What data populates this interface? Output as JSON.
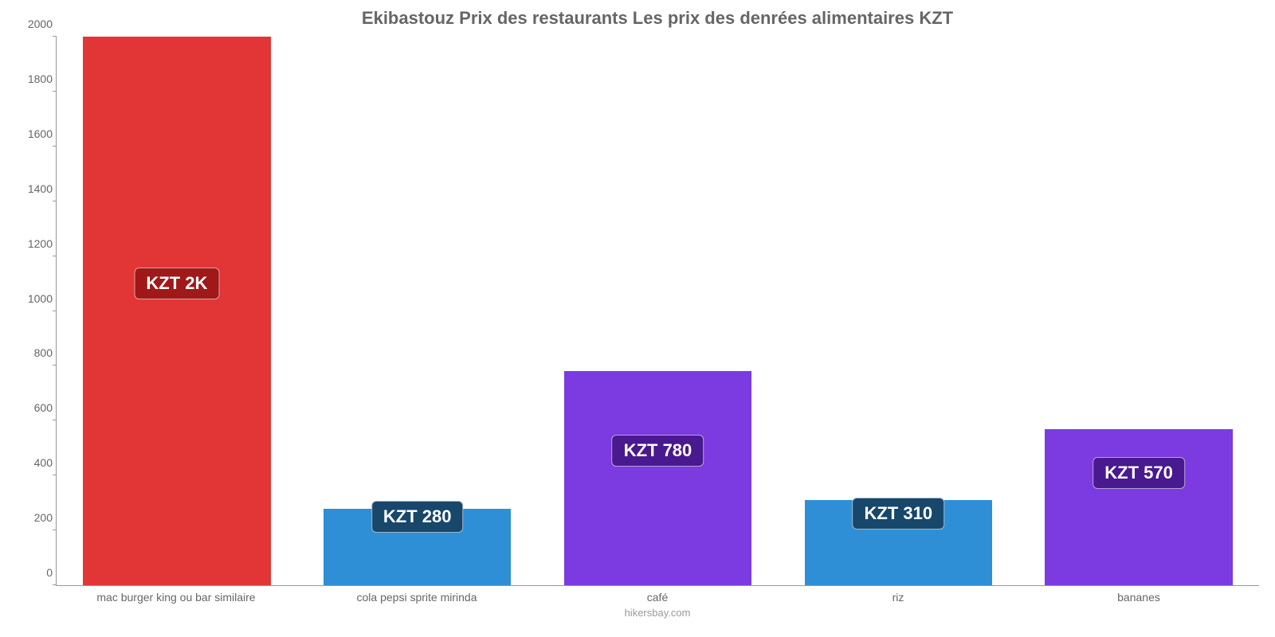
{
  "chart": {
    "type": "bar",
    "title": "Ekibastouz Prix des restaurants Les prix des denrées alimentaires KZT",
    "title_color": "#666666",
    "title_fontsize": 22,
    "background_color": "#ffffff",
    "axis_color": "#999999",
    "tick_label_color": "#666666",
    "tick_label_fontsize": 14,
    "credit": "hikersbay.com",
    "credit_color": "#999999",
    "ylim": [
      0,
      2000
    ],
    "ytick_step": 200,
    "yticks": [
      0,
      200,
      400,
      600,
      800,
      1000,
      1200,
      1400,
      1600,
      1800,
      2000
    ],
    "bar_width_pct": 78,
    "badge_text_color": "#ffffff",
    "badge_fontsize": 22,
    "badge_border_color": "rgba(255,255,255,0.6)",
    "categories": [
      {
        "label": "mac burger king ou bar similaire",
        "value": 2000,
        "value_label": "KZT 2K",
        "bar_color": "#e23636",
        "badge_color": "#a01818",
        "badge_y_value": 1100
      },
      {
        "label": "cola pepsi sprite mirinda",
        "value": 280,
        "value_label": "KZT 280",
        "bar_color": "#2f8fd6",
        "badge_color": "#17476b",
        "badge_y_value": 250
      },
      {
        "label": "café",
        "value": 780,
        "value_label": "KZT 780",
        "bar_color": "#7b3be0",
        "badge_color": "#48198f",
        "badge_y_value": 490
      },
      {
        "label": "riz",
        "value": 310,
        "value_label": "KZT 310",
        "bar_color": "#2f8fd6",
        "badge_color": "#17476b",
        "badge_y_value": 260
      },
      {
        "label": "bananes",
        "value": 570,
        "value_label": "KZT 570",
        "bar_color": "#7b3be0",
        "badge_color": "#48198f",
        "badge_y_value": 410
      }
    ]
  }
}
